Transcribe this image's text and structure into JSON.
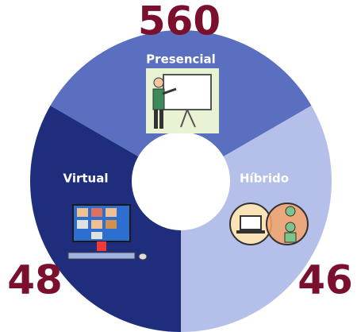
{
  "segments": [
    {
      "label": "Presencial",
      "value": 560
    },
    {
      "label": "Híbrido",
      "value": 46
    },
    {
      "label": "Virtual",
      "value": 48
    }
  ]
}
